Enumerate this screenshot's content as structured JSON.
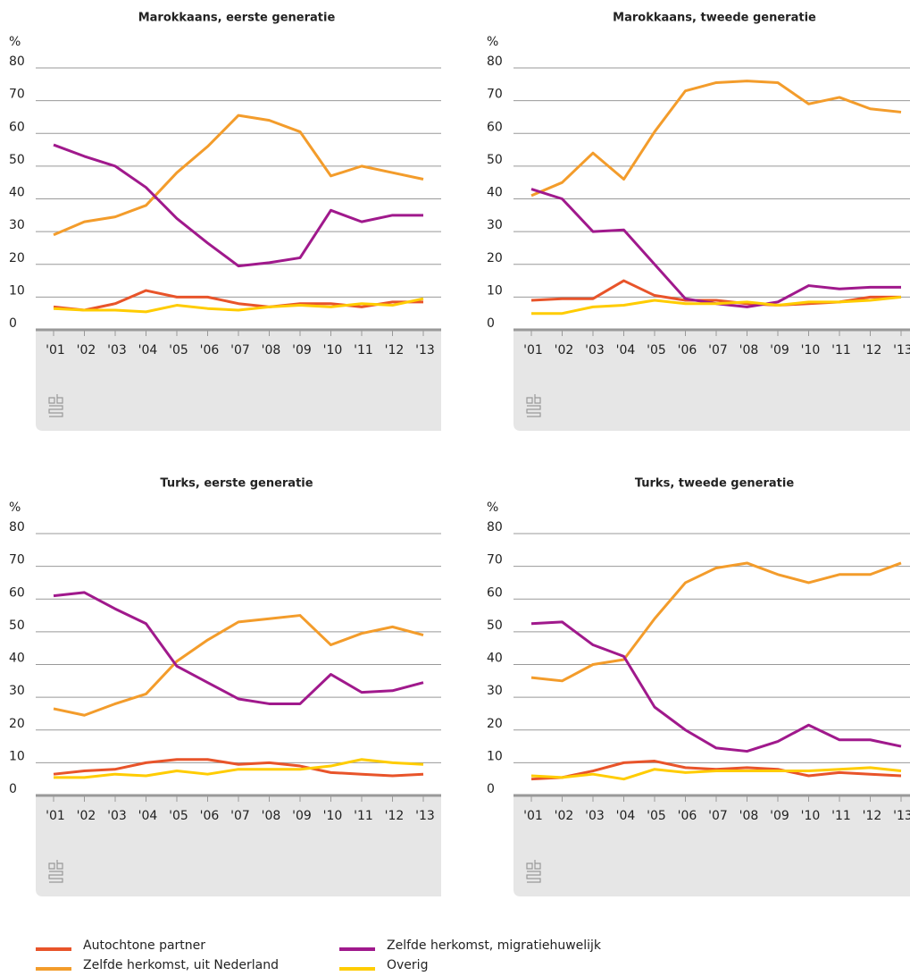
{
  "chart_data": [
    {
      "type": "line",
      "title": "Marokkaans, eerste generatie",
      "ylabel": "%",
      "categories": [
        "'01",
        "'02",
        "'03",
        "'04",
        "'05",
        "'06",
        "'07",
        "'08",
        "'09",
        "'10",
        "'11",
        "'12",
        "'13"
      ],
      "ylim": [
        0,
        80
      ],
      "yticks": [
        0,
        10,
        20,
        30,
        40,
        50,
        60,
        70,
        80
      ],
      "grid": true,
      "series": [
        {
          "name": "Autochtone partner",
          "color": "#e8542a",
          "values": [
            7,
            6,
            8,
            12,
            10,
            10,
            8,
            7,
            8,
            8,
            7,
            8.5,
            8.5
          ]
        },
        {
          "name": "Zelfde herkomst, uit Nederland",
          "color": "#f39c2b",
          "values": [
            29,
            33,
            34.5,
            38,
            48,
            56,
            65.5,
            64,
            60.5,
            47,
            50,
            48,
            46
          ]
        },
        {
          "name": "Zelfde herkomst, migratiehuwelijk",
          "color": "#a0198c",
          "values": [
            56.5,
            53,
            50,
            43.5,
            34,
            26.5,
            19.5,
            20.5,
            22,
            36.5,
            33,
            35,
            35
          ]
        },
        {
          "name": "Overig",
          "color": "#ffcc00",
          "values": [
            6.5,
            6,
            6,
            5.5,
            7.5,
            6.5,
            6,
            7,
            7.5,
            7,
            8,
            7.5,
            9.5
          ]
        }
      ]
    },
    {
      "type": "line",
      "title": "Marokkaans, tweede generatie",
      "ylabel": "%",
      "categories": [
        "'01",
        "'02",
        "'03",
        "'04",
        "'05",
        "'06",
        "'07",
        "'08",
        "'09",
        "'10",
        "'11",
        "'12",
        "'13"
      ],
      "ylim": [
        0,
        80
      ],
      "yticks": [
        0,
        10,
        20,
        30,
        40,
        50,
        60,
        70,
        80
      ],
      "grid": true,
      "series": [
        {
          "name": "Autochtone partner",
          "color": "#e8542a",
          "values": [
            9,
            9.5,
            9.5,
            15,
            10.5,
            9,
            9,
            8,
            7.5,
            8,
            8.5,
            10,
            10
          ]
        },
        {
          "name": "Zelfde herkomst, uit Nederland",
          "color": "#f39c2b",
          "values": [
            41,
            45,
            54,
            46,
            60.5,
            73,
            75.5,
            76,
            75.5,
            69,
            71,
            67.5,
            66.5
          ]
        },
        {
          "name": "Zelfde herkomst, migratiehuwelijk",
          "color": "#a0198c",
          "values": [
            43,
            40,
            30,
            30.5,
            20,
            9.5,
            8,
            7,
            8.5,
            13.5,
            12.5,
            13,
            13
          ]
        },
        {
          "name": "Overig",
          "color": "#ffcc00",
          "values": [
            5,
            5,
            7,
            7.5,
            9,
            8,
            8,
            8.5,
            7.5,
            8.5,
            8.5,
            9,
            10
          ]
        }
      ]
    },
    {
      "type": "line",
      "title": "Turks, eerste generatie",
      "ylabel": "%",
      "categories": [
        "'01",
        "'02",
        "'03",
        "'04",
        "'05",
        "'06",
        "'07",
        "'08",
        "'09",
        "'10",
        "'11",
        "'12",
        "'13"
      ],
      "ylim": [
        0,
        80
      ],
      "yticks": [
        0,
        10,
        20,
        30,
        40,
        50,
        60,
        70,
        80
      ],
      "grid": true,
      "series": [
        {
          "name": "Autochtone partner",
          "color": "#e8542a",
          "values": [
            6.5,
            7.5,
            8,
            10,
            11,
            11,
            9.5,
            10,
            9,
            7,
            6.5,
            6,
            6.5
          ]
        },
        {
          "name": "Zelfde herkomst, uit Nederland",
          "color": "#f39c2b",
          "values": [
            26.5,
            24.5,
            28,
            31,
            41,
            47.5,
            53,
            54,
            55,
            46,
            49.5,
            51.5,
            49
          ]
        },
        {
          "name": "Zelfde herkomst, migratiehuwelijk",
          "color": "#a0198c",
          "values": [
            61,
            62,
            57,
            52.5,
            39.5,
            34.5,
            29.5,
            28,
            28,
            37,
            31.5,
            32,
            34.5
          ]
        },
        {
          "name": "Overig",
          "color": "#ffcc00",
          "values": [
            5.5,
            5.5,
            6.5,
            6,
            7.5,
            6.5,
            8,
            8,
            8,
            9,
            11,
            10,
            9.5
          ]
        }
      ]
    },
    {
      "type": "line",
      "title": "Turks, tweede generatie",
      "ylabel": "%",
      "categories": [
        "'01",
        "'02",
        "'03",
        "'04",
        "'05",
        "'06",
        "'07",
        "'08",
        "'09",
        "'10",
        "'11",
        "'12",
        "'13"
      ],
      "ylim": [
        0,
        80
      ],
      "yticks": [
        0,
        10,
        20,
        30,
        40,
        50,
        60,
        70,
        80
      ],
      "grid": true,
      "series": [
        {
          "name": "Autochtone partner",
          "color": "#e8542a",
          "values": [
            5,
            5.5,
            7.5,
            10,
            10.5,
            8.5,
            8,
            8.5,
            8,
            6,
            7,
            6.5,
            6
          ]
        },
        {
          "name": "Zelfde herkomst, uit Nederland",
          "color": "#f39c2b",
          "values": [
            36,
            35,
            40,
            41.5,
            54,
            65,
            69.5,
            71,
            67.5,
            65,
            67.5,
            67.5,
            71
          ]
        },
        {
          "name": "Zelfde herkomst, migratiehuwelijk",
          "color": "#a0198c",
          "values": [
            52.5,
            53,
            46,
            42.5,
            27,
            20,
            14.5,
            13.5,
            16.5,
            21.5,
            17,
            17,
            15
          ]
        },
        {
          "name": "Overig",
          "color": "#ffcc00",
          "values": [
            6,
            5.5,
            6.5,
            5,
            8,
            7,
            7.5,
            7.5,
            7.5,
            7.5,
            8,
            8.5,
            7.5
          ]
        }
      ]
    }
  ]
}
